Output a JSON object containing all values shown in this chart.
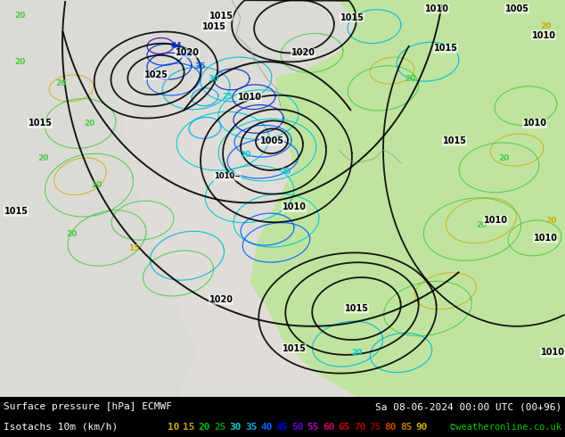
{
  "title_left": "Surface pressure [hPa] ECMWF",
  "title_right": "Sa 08-06-2024 00:00 UTC (00+96)",
  "legend_label": "Isotachs 10m (km/h)",
  "legend_values": [
    10,
    15,
    20,
    25,
    30,
    35,
    40,
    45,
    50,
    55,
    60,
    65,
    70,
    75,
    80,
    85,
    90
  ],
  "legend_colors": [
    "#d4b000",
    "#ccaa00",
    "#00bb00",
    "#009900",
    "#00cccc",
    "#00aadd",
    "#0066ff",
    "#0000ee",
    "#6600cc",
    "#aa00bb",
    "#dd0066",
    "#cc0000",
    "#aa0000",
    "#880000",
    "#cc4400",
    "#cc7700",
    "#ccaa00"
  ],
  "copyright": "©weatheronline.co.uk",
  "land_color": "#b8e8a0",
  "ocean_color": "#d8d8d8",
  "bottom_bar_bg": "#000000",
  "fig_width": 6.34,
  "fig_height": 4.9,
  "dpi": 100
}
